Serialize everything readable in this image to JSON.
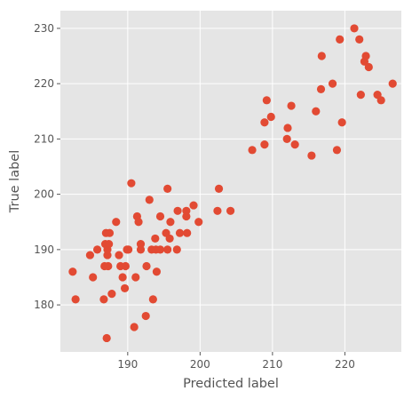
{
  "chart_data": {
    "type": "scatter",
    "title": "",
    "xlabel": "Predicted label",
    "ylabel": "True label",
    "xlim": [
      180.7,
      227.8
    ],
    "ylim": [
      171.5,
      233.2
    ],
    "xticks": [
      190,
      200,
      210,
      220
    ],
    "yticks": [
      180,
      190,
      200,
      210,
      220,
      230
    ],
    "grid": true,
    "colors": {
      "background": "#e5e5e5",
      "grid": "#ffffff",
      "marker": "#e24a33",
      "tick_text": "#555555"
    },
    "series": [
      {
        "points": [
          [
            182.4,
            186
          ],
          [
            182.8,
            181
          ],
          [
            184.8,
            189
          ],
          [
            185.2,
            185
          ],
          [
            185.8,
            190
          ],
          [
            186.7,
            181
          ],
          [
            186.8,
            187
          ],
          [
            186.9,
            191
          ],
          [
            187.0,
            193
          ],
          [
            187.1,
            174
          ],
          [
            187.2,
            189
          ],
          [
            187.2,
            190
          ],
          [
            187.3,
            187
          ],
          [
            187.4,
            191
          ],
          [
            187.5,
            193
          ],
          [
            187.8,
            182
          ],
          [
            188.4,
            195
          ],
          [
            188.8,
            189
          ],
          [
            189.0,
            187
          ],
          [
            189.3,
            185
          ],
          [
            189.7,
            187
          ],
          [
            189.6,
            183
          ],
          [
            189.9,
            190
          ],
          [
            190.1,
            190
          ],
          [
            190.5,
            202
          ],
          [
            190.9,
            176
          ],
          [
            191.1,
            185
          ],
          [
            191.3,
            196
          ],
          [
            191.5,
            195
          ],
          [
            191.8,
            190
          ],
          [
            191.8,
            191
          ],
          [
            192.5,
            178
          ],
          [
            192.6,
            187
          ],
          [
            193.0,
            199
          ],
          [
            193.3,
            190
          ],
          [
            193.5,
            181
          ],
          [
            193.8,
            192
          ],
          [
            193.9,
            190
          ],
          [
            194.0,
            186
          ],
          [
            194.5,
            190
          ],
          [
            194.5,
            196
          ],
          [
            195.3,
            193
          ],
          [
            195.5,
            201
          ],
          [
            195.5,
            190
          ],
          [
            195.8,
            192
          ],
          [
            195.9,
            195
          ],
          [
            196.8,
            190
          ],
          [
            196.9,
            197
          ],
          [
            197.2,
            193
          ],
          [
            198.1,
            196
          ],
          [
            198.2,
            193
          ],
          [
            198.1,
            197
          ],
          [
            199.1,
            198
          ],
          [
            199.8,
            195
          ],
          [
            202.4,
            197
          ],
          [
            202.6,
            201
          ],
          [
            204.2,
            197
          ],
          [
            207.2,
            208
          ],
          [
            208.9,
            209
          ],
          [
            208.9,
            213
          ],
          [
            209.2,
            217
          ],
          [
            209.8,
            214
          ],
          [
            212.0,
            210
          ],
          [
            212.1,
            212
          ],
          [
            212.6,
            216
          ],
          [
            213.1,
            209
          ],
          [
            215.4,
            207
          ],
          [
            216.0,
            215
          ],
          [
            216.7,
            219
          ],
          [
            216.8,
            225
          ],
          [
            218.3,
            220
          ],
          [
            218.9,
            208
          ],
          [
            219.3,
            228
          ],
          [
            219.6,
            213
          ],
          [
            221.3,
            230
          ],
          [
            222.0,
            228
          ],
          [
            222.2,
            218
          ],
          [
            222.7,
            224
          ],
          [
            222.9,
            225
          ],
          [
            223.3,
            223
          ],
          [
            224.5,
            218
          ],
          [
            225.0,
            217
          ],
          [
            226.6,
            220
          ]
        ]
      }
    ]
  }
}
